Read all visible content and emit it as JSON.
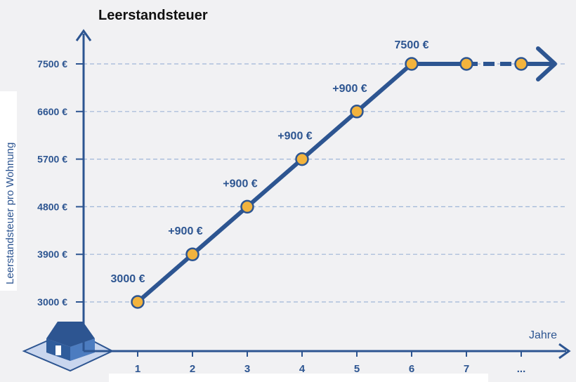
{
  "chart_data": {
    "type": "line",
    "title": "Leerstandsteuer",
    "xlabel": "Jahre",
    "ylabel": "Leerstandsteuer pro Wohnung",
    "x_ticks": [
      "1",
      "2",
      "3",
      "4",
      "5",
      "6",
      "7",
      "..."
    ],
    "y_ticks": [
      "3000 €",
      "3900 €",
      "4800 €",
      "5700 €",
      "6600 €",
      "7500 €"
    ],
    "y_tick_values": [
      3000,
      3900,
      4800,
      5700,
      6600,
      7500
    ],
    "ylim": [
      3000,
      7500
    ],
    "grid": "horizontal dashed",
    "series": [
      {
        "x": [
          "1",
          "2",
          "3",
          "4",
          "5",
          "6",
          "7",
          "..."
        ],
        "values": [
          3000,
          3900,
          4800,
          5700,
          6600,
          7500,
          7500,
          7500
        ]
      }
    ],
    "annotations": [
      {
        "x": "1",
        "text": "3000 €"
      },
      {
        "x": "2",
        "text": "+900 €"
      },
      {
        "x": "3",
        "text": "+900 €"
      },
      {
        "x": "4",
        "text": "+900 €"
      },
      {
        "x": "5",
        "text": "+900 €"
      },
      {
        "x": "6",
        "text": "7500 €"
      }
    ],
    "colors": {
      "line": "#2d5591",
      "marker_fill": "#f2b33d",
      "grid": "#9fb6d8",
      "text": "#2d5591"
    }
  }
}
